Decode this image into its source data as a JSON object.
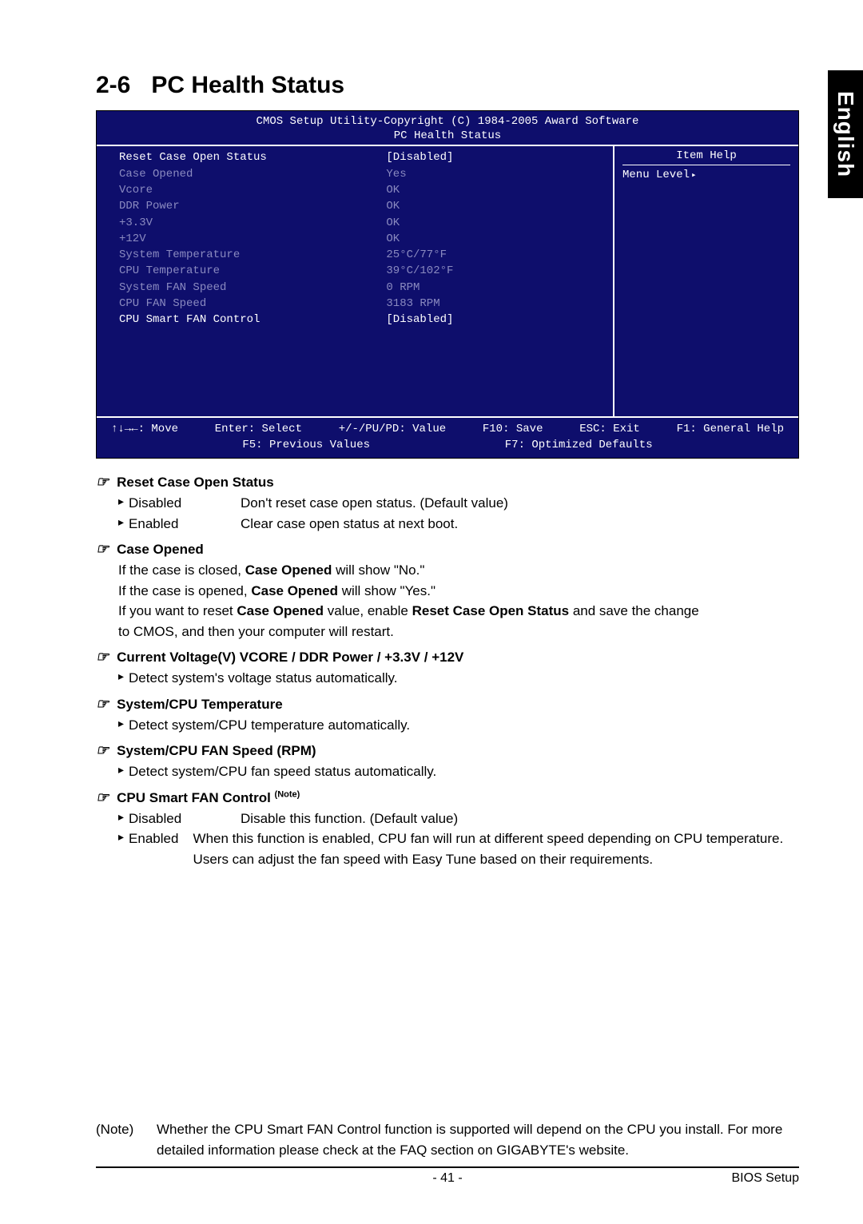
{
  "sideTab": "English",
  "section": {
    "number": "2-6",
    "title": "PC Health Status"
  },
  "bios": {
    "headerLine1": "CMOS Setup Utility-Copyright (C) 1984-2005 Award Software",
    "headerLine2": "PC Health Status",
    "rows": [
      {
        "label": "Reset Case Open Status",
        "value": "[Disabled]",
        "tone": "white"
      },
      {
        "label": "Case Opened",
        "value": "Yes",
        "tone": "gray"
      },
      {
        "label": "Vcore",
        "value": "OK",
        "tone": "gray"
      },
      {
        "label": "DDR Power",
        "value": "OK",
        "tone": "gray"
      },
      {
        "label": "+3.3V",
        "value": "OK",
        "tone": "gray"
      },
      {
        "label": "+12V",
        "value": "OK",
        "tone": "gray"
      },
      {
        "label": "System Temperature",
        "value": "25°C/77°F",
        "tone": "gray"
      },
      {
        "label": "CPU Temperature",
        "value": "39°C/102°F",
        "tone": "gray"
      },
      {
        "label": "System FAN Speed",
        "value": "0     RPM",
        "tone": "gray"
      },
      {
        "label": "CPU FAN Speed",
        "value": "3183 RPM",
        "tone": "gray"
      },
      {
        "label": "CPU Smart FAN Control",
        "value": "[Disabled]",
        "tone": "white"
      }
    ],
    "help": {
      "title": "Item Help",
      "menuLevel": "Menu Level"
    },
    "footer": {
      "move": "↑↓→←: Move",
      "select": "Enter: Select",
      "value": "+/-/PU/PD: Value",
      "save": "F10: Save",
      "exit": "ESC: Exit",
      "genHelp": "F1: General Help",
      "prev": "F5: Previous Values",
      "opt": "F7: Optimized Defaults"
    }
  },
  "desc": {
    "items": [
      {
        "title": "Reset Case Open Status",
        "opts": [
          {
            "name": "Disabled",
            "text": "Don't reset case open status. (Default value)"
          },
          {
            "name": "Enabled",
            "text": "Clear case open status at next boot."
          }
        ]
      },
      {
        "title": "Case Opened",
        "lines": [
          "If the case is closed, Case Opened will show \"No.\"",
          "If the case is opened, Case Opened will show \"Yes.\"",
          "If you want to reset Case Opened value, enable Reset Case Open Status and save the change",
          "to CMOS, and then your computer will restart."
        ],
        "boldRuns": [
          [
            "Case Opened"
          ],
          [
            "Case Opened"
          ],
          [
            "Case Opened",
            "Reset Case Open Status"
          ],
          []
        ]
      },
      {
        "title": "Current Voltage(V) VCORE / DDR Power / +3.3V / +12V",
        "sub": "Detect system's voltage status automatically."
      },
      {
        "title": "System/CPU Temperature",
        "sub": "Detect system/CPU temperature automatically."
      },
      {
        "title": "System/CPU FAN Speed (RPM)",
        "sub": "Detect system/CPU fan speed status automatically."
      },
      {
        "title": "CPU Smart FAN Control",
        "noteSup": "(Note)",
        "opts": [
          {
            "name": "Disabled",
            "text": "Disable this function. (Default value)"
          },
          {
            "name": "Enabled",
            "text": "When this function is enabled, CPU fan will run at different speed depending on CPU temperature. Users can adjust the fan speed with Easy Tune based on their requirements."
          }
        ]
      }
    ]
  },
  "noteBox": {
    "label": "(Note)",
    "text": "Whether the CPU Smart FAN Control function is supported will depend on the CPU you install. For more detailed information please check at the FAQ section on GIGABYTE's website."
  },
  "footerBar": {
    "page": "- 41 -",
    "right": "BIOS Setup"
  }
}
